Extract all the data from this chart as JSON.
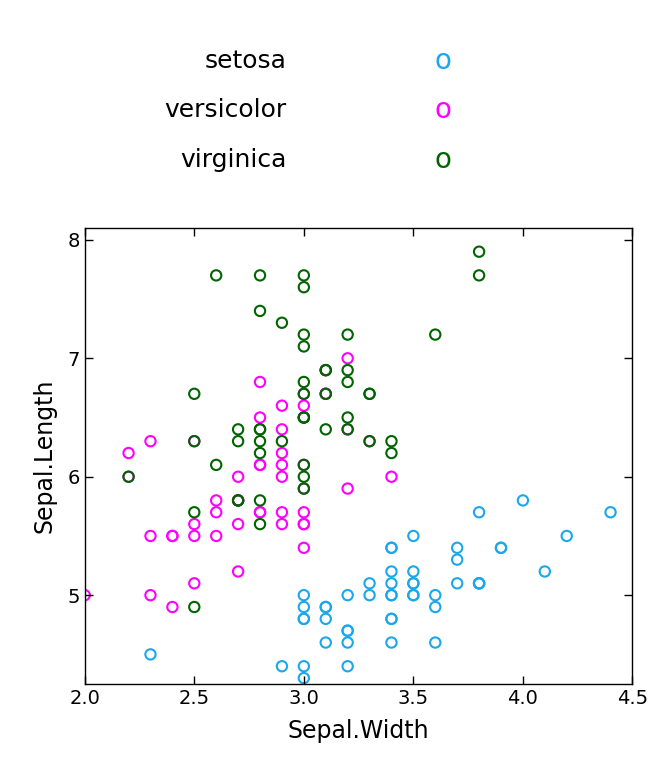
{
  "setosa_x": [
    3.5,
    3.0,
    3.2,
    3.1,
    3.6,
    3.9,
    3.4,
    3.4,
    2.9,
    3.1,
    3.7,
    3.4,
    3.0,
    3.0,
    4.0,
    4.4,
    3.9,
    3.5,
    3.8,
    3.8,
    3.4,
    3.7,
    3.6,
    3.3,
    3.4,
    3.0,
    3.4,
    3.5,
    3.4,
    3.2,
    3.1,
    3.4,
    4.1,
    4.2,
    3.1,
    3.2,
    3.5,
    3.6,
    3.0,
    3.4,
    3.5,
    2.3,
    3.2,
    3.5,
    3.8,
    3.0,
    3.8,
    3.2,
    3.7,
    3.3
  ],
  "setosa_y": [
    5.1,
    4.9,
    4.7,
    4.6,
    5.0,
    5.4,
    4.6,
    5.0,
    4.4,
    4.9,
    5.4,
    4.8,
    4.8,
    4.3,
    5.8,
    5.7,
    5.4,
    5.1,
    5.7,
    5.1,
    5.4,
    5.1,
    4.6,
    5.1,
    4.8,
    5.0,
    5.0,
    5.2,
    5.2,
    4.7,
    4.8,
    5.4,
    5.2,
    5.5,
    4.9,
    5.0,
    5.5,
    4.9,
    4.4,
    5.1,
    5.0,
    4.5,
    4.4,
    5.0,
    5.1,
    4.8,
    5.1,
    4.6,
    5.3,
    5.0
  ],
  "versicolor_x": [
    3.2,
    3.2,
    3.1,
    2.3,
    2.8,
    2.8,
    3.3,
    2.4,
    2.9,
    2.7,
    2.0,
    3.0,
    2.2,
    2.9,
    2.9,
    3.1,
    3.0,
    2.7,
    2.2,
    2.5,
    3.2,
    2.8,
    2.5,
    2.8,
    2.9,
    3.0,
    2.8,
    3.0,
    2.9,
    2.6,
    2.4,
    2.4,
    2.7,
    2.7,
    3.0,
    3.4,
    3.1,
    2.3,
    3.0,
    2.5,
    2.6,
    3.0,
    2.6,
    2.3,
    2.7,
    3.0,
    2.9,
    2.9,
    2.5,
    2.8
  ],
  "versicolor_y": [
    7.0,
    6.4,
    6.9,
    5.5,
    6.5,
    5.7,
    6.3,
    4.9,
    6.6,
    5.2,
    5.0,
    5.9,
    6.0,
    6.1,
    5.6,
    6.7,
    5.6,
    5.8,
    6.2,
    5.6,
    5.9,
    6.1,
    6.3,
    6.1,
    6.4,
    6.6,
    6.8,
    6.7,
    6.0,
    5.7,
    5.5,
    5.5,
    5.8,
    6.0,
    5.4,
    6.0,
    6.7,
    6.3,
    5.6,
    5.5,
    5.5,
    6.1,
    5.8,
    5.0,
    5.6,
    5.7,
    5.7,
    6.2,
    5.1,
    5.7
  ],
  "virginica_x": [
    3.3,
    2.7,
    3.0,
    2.9,
    3.0,
    3.0,
    2.5,
    2.9,
    2.5,
    3.6,
    3.2,
    2.7,
    3.0,
    2.5,
    2.8,
    3.2,
    3.0,
    3.8,
    2.6,
    2.2,
    3.2,
    2.8,
    2.8,
    2.7,
    3.3,
    3.2,
    2.8,
    3.0,
    2.8,
    3.0,
    2.8,
    3.8,
    2.8,
    2.8,
    2.6,
    3.0,
    3.4,
    3.1,
    3.0,
    3.1,
    3.1,
    3.1,
    2.7,
    3.2,
    3.3,
    3.0,
    2.5,
    3.0,
    3.4,
    3.0
  ],
  "virginica_y": [
    6.3,
    5.8,
    7.1,
    6.3,
    6.5,
    7.6,
    4.9,
    7.3,
    6.7,
    7.2,
    6.5,
    6.4,
    6.8,
    5.7,
    5.8,
    6.4,
    6.5,
    7.7,
    7.7,
    6.0,
    6.9,
    5.6,
    7.7,
    6.3,
    6.7,
    7.2,
    6.2,
    6.1,
    6.4,
    7.2,
    7.4,
    7.9,
    6.4,
    6.3,
    6.1,
    7.7,
    6.3,
    6.4,
    6.0,
    6.9,
    6.7,
    6.9,
    5.8,
    6.8,
    6.7,
    6.7,
    6.3,
    6.5,
    6.2,
    5.9
  ],
  "setosa_color": "#1AA7EC",
  "versicolor_color": "#FF00FF",
  "virginica_color": "#006400",
  "xlabel": "Sepal.Width",
  "ylabel": "Sepal.Length",
  "xlim": [
    2.0,
    4.5
  ],
  "ylim": [
    4.25,
    8.1
  ],
  "xticks": [
    2.0,
    2.5,
    3.0,
    3.5,
    4.0,
    4.5
  ],
  "yticks": [
    5.0,
    6.0,
    7.0,
    8.0
  ],
  "legend_labels": [
    "setosa",
    "versicolor",
    "virginica"
  ],
  "legend_colors": [
    "#1AA7EC",
    "#FF00FF",
    "#006400"
  ],
  "marker_size": 55,
  "marker_lw": 1.5,
  "font_size_axis_label": 17,
  "font_size_tick": 14,
  "font_size_legend": 18
}
